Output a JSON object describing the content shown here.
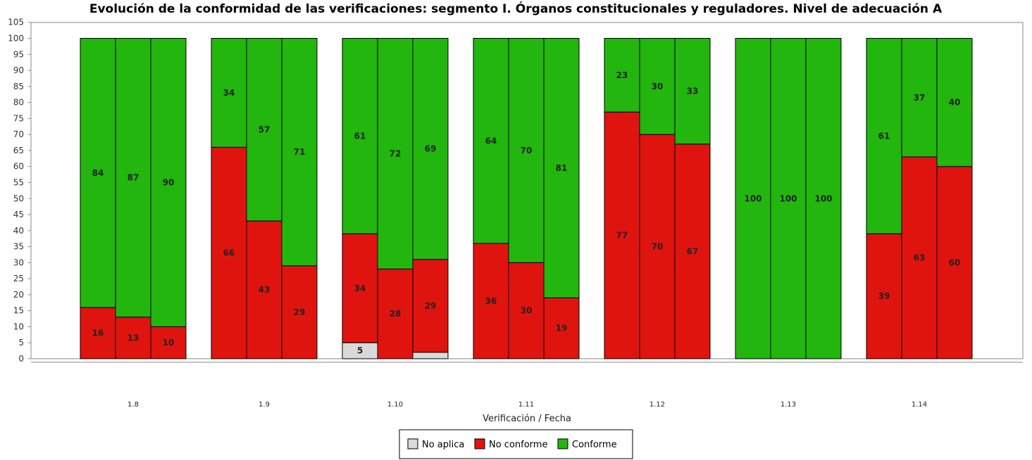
{
  "chart_data": {
    "type": "bar",
    "stacked": true,
    "normalized_percent": true,
    "title": "Evolución de la conformidad de las verificaciones: segmento I. Órganos constitucionales y reguladores. Nivel de adecuación A",
    "xlabel": "Verificación / Fecha",
    "ylabel": "",
    "ylim": [
      0,
      105
    ],
    "yticks": [
      0,
      5,
      10,
      15,
      20,
      25,
      30,
      35,
      40,
      45,
      50,
      55,
      60,
      65,
      70,
      75,
      80,
      85,
      90,
      95,
      100,
      105
    ],
    "grid": false,
    "legend_position": "bottom",
    "categories": [
      "1.8",
      "1.9",
      "1.10",
      "1.11",
      "1.12",
      "1.13",
      "1.14"
    ],
    "bars_per_category": 3,
    "series": [
      {
        "name": "No aplica",
        "color": "#d9d9d9",
        "values": [
          [
            0,
            0,
            0
          ],
          [
            0,
            0,
            0
          ],
          [
            5,
            0,
            2
          ],
          [
            0,
            0,
            0
          ],
          [
            0,
            0,
            0
          ],
          [
            0,
            0,
            0
          ],
          [
            0,
            0,
            0
          ]
        ],
        "labels": [
          [
            "",
            "",
            ""
          ],
          [
            "",
            "",
            ""
          ],
          [
            "5",
            "",
            ""
          ],
          [
            "",
            "",
            ""
          ],
          [
            "",
            "",
            ""
          ],
          [
            "",
            "",
            ""
          ],
          [
            "",
            "",
            ""
          ]
        ]
      },
      {
        "name": "No conforme",
        "color": "#e0140f",
        "values": [
          [
            16,
            13,
            10
          ],
          [
            66,
            43,
            29
          ],
          [
            34,
            28,
            29
          ],
          [
            36,
            30,
            19
          ],
          [
            77,
            70,
            67
          ],
          [
            0,
            0,
            0
          ],
          [
            39,
            63,
            60
          ]
        ],
        "labels": [
          [
            "16",
            "13",
            "10"
          ],
          [
            "66",
            "43",
            "29"
          ],
          [
            "34",
            "28",
            "29"
          ],
          [
            "36",
            "30",
            "19"
          ],
          [
            "77",
            "70",
            "67"
          ],
          [
            "",
            "",
            ""
          ],
          [
            "39",
            "63",
            "60"
          ]
        ]
      },
      {
        "name": "Conforme",
        "color": "#22b60e",
        "values": [
          [
            84,
            87,
            90
          ],
          [
            34,
            57,
            71
          ],
          [
            61,
            72,
            69
          ],
          [
            64,
            70,
            81
          ],
          [
            23,
            30,
            33
          ],
          [
            100,
            100,
            100
          ],
          [
            61,
            37,
            40
          ]
        ],
        "labels": [
          [
            "84",
            "87",
            "90"
          ],
          [
            "34",
            "57",
            "71"
          ],
          [
            "61",
            "72",
            "69"
          ],
          [
            "64",
            "70",
            "81"
          ],
          [
            "23",
            "30",
            "33"
          ],
          [
            "100",
            "100",
            "100"
          ],
          [
            "61",
            "37",
            "40"
          ]
        ]
      }
    ]
  }
}
